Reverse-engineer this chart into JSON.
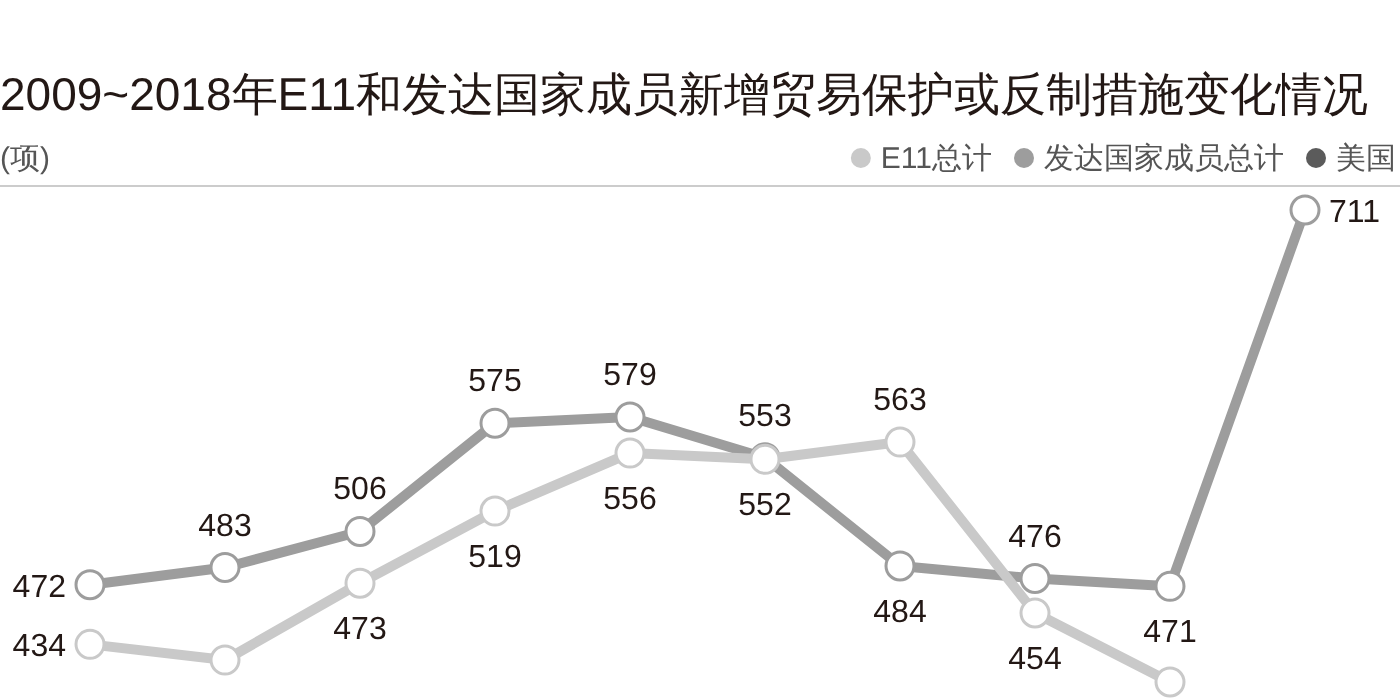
{
  "chart_data": {
    "type": "line",
    "title": "2009~2018年E11和发达国家成员新增贸易保护或反制措施变化情况",
    "ylabel": "(项)",
    "categories": [
      null,
      null,
      null,
      null,
      null,
      null,
      null,
      null,
      null,
      null
    ],
    "legend": "top right",
    "marker": "circle",
    "series": [
      {
        "name": "E11总计",
        "color": "#c9c9c9",
        "values": [
          434,
          424,
          473,
          519,
          556,
          552,
          563,
          454,
          410,
          null
        ],
        "value_labels": [
          "434",
          null,
          "473",
          "519",
          "556",
          "552",
          "563",
          "454",
          null,
          null
        ]
      },
      {
        "name": "发达国家成员总计",
        "color": "#9d9d9d",
        "values": [
          472,
          483,
          506,
          575,
          579,
          553,
          484,
          476,
          471,
          711
        ],
        "value_labels": [
          "472",
          "483",
          "506",
          "575",
          "579",
          "553",
          "484",
          "476",
          "471",
          "711"
        ]
      },
      {
        "name": "美国",
        "color": "#5b5b5b",
        "values": [
          null,
          null,
          null,
          null,
          null,
          null,
          null,
          null,
          null,
          null
        ]
      }
    ]
  }
}
